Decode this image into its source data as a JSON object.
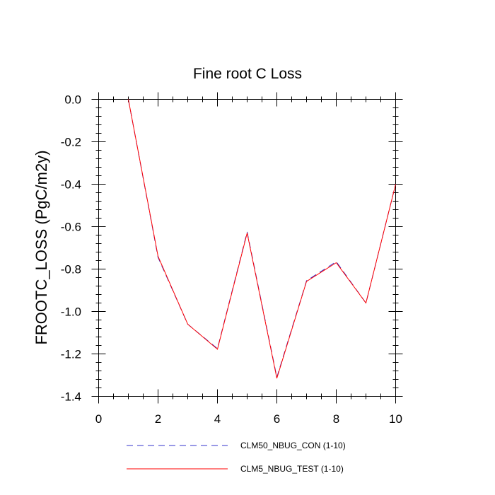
{
  "chart_data": {
    "type": "line",
    "title": "Fine root C Loss",
    "xlabel": "",
    "ylabel": "FROOTC_LOSS  (PgC/m2y)",
    "xlim": [
      0,
      10
    ],
    "ylim": [
      -1.4,
      0.0
    ],
    "x_ticks": [
      "0",
      "2",
      "4",
      "6",
      "8",
      "10"
    ],
    "y_ticks": [
      "0.0",
      "-0.2",
      "-0.4",
      "-0.6",
      "-0.8",
      "-1.0",
      "-1.2",
      "-1.4"
    ],
    "grid": false,
    "legend_position": "bottom",
    "series": [
      {
        "name": "CLM50_NBUG_CON (1-10)",
        "color": "#3333cc",
        "style": "dashed",
        "x": [
          1,
          2,
          3,
          4,
          5,
          6,
          7,
          8,
          9,
          10
        ],
        "y": [
          0.0,
          -0.745,
          -1.06,
          -1.175,
          -0.625,
          -1.31,
          -0.855,
          -0.765,
          -0.96,
          -0.4
        ]
      },
      {
        "name": "CLM5_NBUG_TEST (1-10)",
        "color": "#ff0000",
        "style": "solid",
        "x": [
          1,
          2,
          3,
          4,
          5,
          6,
          7,
          8,
          9,
          10
        ],
        "y": [
          0.0,
          -0.74,
          -1.06,
          -1.178,
          -0.63,
          -1.315,
          -0.858,
          -0.77,
          -0.96,
          -0.4
        ]
      }
    ]
  }
}
